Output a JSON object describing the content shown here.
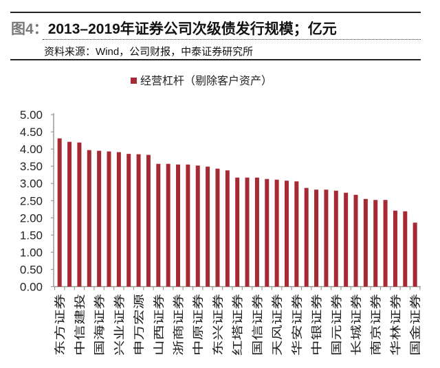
{
  "header": {
    "figure_label": "图4：",
    "title": "2013–2019年证券公司次级债发行规模；亿元",
    "source": "资料来源：Wind，公司财报，中泰证券研究所"
  },
  "chart_data": {
    "type": "bar",
    "title": "2013–2019年证券公司次级债发行规模；亿元",
    "legend": {
      "entries": [
        "经营杠杆（剔除客户资产）"
      ],
      "placement": "top-center"
    },
    "categories": [
      "东方证券",
      "",
      "中信建投",
      "",
      "国海证券",
      "",
      "兴业证券",
      "",
      "申万宏源",
      "",
      "山西证券",
      "",
      "浙商证券",
      "",
      "中原证券",
      "",
      "东兴证券",
      "",
      "红塔证券",
      "",
      "国信证券",
      "",
      "天风证券",
      "",
      "华安证券",
      "",
      "中银证券",
      "",
      "国元证券",
      "",
      "长城证券",
      "",
      "南京证券",
      "",
      "华林证券",
      "",
      "国金证券"
    ],
    "series": [
      {
        "name": "经营杠杆（剔除客户资产）",
        "color": "#A52A33",
        "values": [
          4.31,
          4.21,
          4.19,
          3.97,
          3.95,
          3.93,
          3.91,
          3.86,
          3.85,
          3.83,
          3.57,
          3.57,
          3.55,
          3.55,
          3.52,
          3.49,
          3.43,
          3.38,
          3.17,
          3.17,
          3.17,
          3.13,
          3.11,
          3.08,
          3.06,
          2.87,
          2.82,
          2.82,
          2.79,
          2.73,
          2.67,
          2.55,
          2.52,
          2.52,
          2.21,
          2.19,
          1.86
        ]
      }
    ],
    "ylim": [
      0,
      5
    ],
    "yticks": [
      "0.00",
      "0.50",
      "1.00",
      "1.50",
      "2.00",
      "2.50",
      "3.00",
      "3.50",
      "4.00",
      "4.50",
      "5.00"
    ],
    "xlabel": "",
    "ylabel": "",
    "grid": false
  }
}
